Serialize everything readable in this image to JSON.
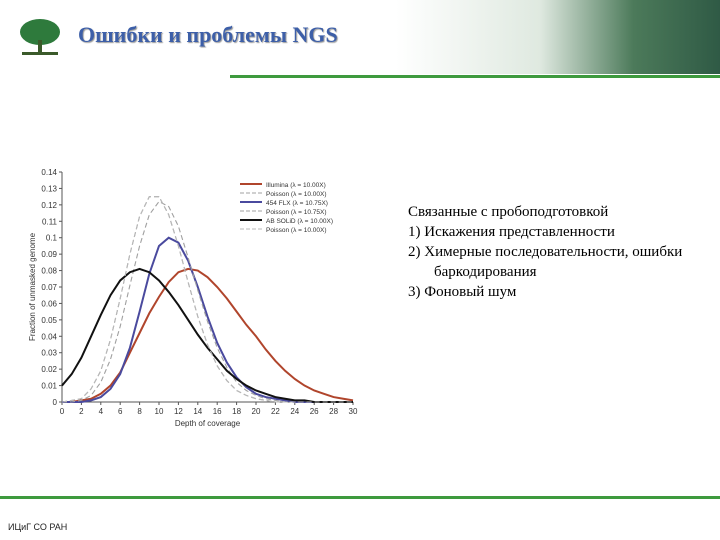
{
  "header": {
    "title": "Ошибки и проблемы NGS"
  },
  "chart_data": {
    "type": "line",
    "xlabel": "Depth of coverage",
    "ylabel": "Fraction of unmasked genome",
    "x": [
      0,
      1,
      2,
      3,
      4,
      5,
      6,
      7,
      8,
      9,
      10,
      11,
      12,
      13,
      14,
      15,
      16,
      17,
      18,
      19,
      20,
      21,
      22,
      23,
      24,
      25,
      26,
      27,
      28,
      29,
      30
    ],
    "xlim": [
      0,
      30
    ],
    "xticks": [
      0,
      2,
      4,
      6,
      8,
      10,
      12,
      14,
      16,
      18,
      20,
      22,
      24,
      26,
      28,
      30
    ],
    "ylim": [
      0,
      0.14
    ],
    "yticks": [
      0,
      0.01,
      0.02,
      0.03,
      0.04,
      0.05,
      0.06,
      0.07,
      0.08,
      0.09,
      0.1,
      0.11,
      0.12,
      0.13,
      0.14
    ],
    "legend": "upper right",
    "series": [
      {
        "name": "Illumina (λ = 10.00X)",
        "color": "#b0452c",
        "line_style": "solid",
        "values": [
          0,
          0,
          0.001,
          0.002,
          0.005,
          0.01,
          0.018,
          0.03,
          0.042,
          0.054,
          0.064,
          0.073,
          0.079,
          0.081,
          0.08,
          0.076,
          0.07,
          0.063,
          0.055,
          0.047,
          0.04,
          0.032,
          0.025,
          0.019,
          0.014,
          0.01,
          0.007,
          0.005,
          0.003,
          0.002,
          0.001
        ]
      },
      {
        "name": "Poisson (λ = 10.00X)",
        "color": "#a0a0a0",
        "line_style": "dashed",
        "values": [
          0,
          0.001,
          0.002,
          0.008,
          0.019,
          0.038,
          0.063,
          0.09,
          0.113,
          0.125,
          0.125,
          0.114,
          0.095,
          0.073,
          0.052,
          0.035,
          0.022,
          0.013,
          0.007,
          0.004,
          0.002,
          0.001,
          0,
          0,
          0,
          0,
          0,
          0,
          0,
          0,
          0
        ]
      },
      {
        "name": "454 FLX (λ = 10.75X)",
        "color": "#4a4a9e",
        "line_style": "solid",
        "values": [
          0,
          0,
          0,
          0.001,
          0.003,
          0.008,
          0.017,
          0.033,
          0.055,
          0.078,
          0.095,
          0.1,
          0.097,
          0.086,
          0.07,
          0.052,
          0.036,
          0.024,
          0.015,
          0.009,
          0.005,
          0.003,
          0.002,
          0.001,
          0,
          0,
          0,
          0,
          0,
          0,
          0
        ]
      },
      {
        "name": "Poisson (λ = 10.75X)",
        "color": "#a0a0a0",
        "line_style": "dashed",
        "values": [
          0,
          0,
          0.001,
          0.004,
          0.012,
          0.026,
          0.046,
          0.071,
          0.095,
          0.114,
          0.122,
          0.119,
          0.107,
          0.088,
          0.068,
          0.049,
          0.033,
          0.021,
          0.012,
          0.007,
          0.004,
          0.002,
          0.001,
          0,
          0,
          0,
          0,
          0,
          0,
          0,
          0
        ]
      },
      {
        "name": "AB SOLiD (λ = 10.00X)",
        "color": "#111111",
        "line_style": "solid",
        "values": [
          0.01,
          0.017,
          0.027,
          0.04,
          0.053,
          0.065,
          0.074,
          0.079,
          0.081,
          0.079,
          0.074,
          0.067,
          0.059,
          0.05,
          0.041,
          0.033,
          0.026,
          0.019,
          0.014,
          0.01,
          0.007,
          0.005,
          0.003,
          0.002,
          0.001,
          0.001,
          0,
          0,
          0,
          0,
          0
        ]
      },
      {
        "name": "Poisson (λ = 10.00X)",
        "color": "#b8b8b8",
        "line_style": "dashed",
        "values": [
          0,
          0.001,
          0.002,
          0.008,
          0.019,
          0.038,
          0.063,
          0.09,
          0.113,
          0.125,
          0.125,
          0.114,
          0.095,
          0.073,
          0.052,
          0.035,
          0.022,
          0.013,
          0.007,
          0.004,
          0.002,
          0.001,
          0,
          0,
          0,
          0,
          0,
          0,
          0,
          0,
          0
        ]
      }
    ]
  },
  "text": {
    "heading": "Связанные с пробоподготовкой",
    "items": [
      "1) Искажения представленности",
      "2) Химерные последовательности, ошибки баркодирования",
      "3) Фоновый шум"
    ]
  },
  "footer": "ИЦиГ СО РАН"
}
